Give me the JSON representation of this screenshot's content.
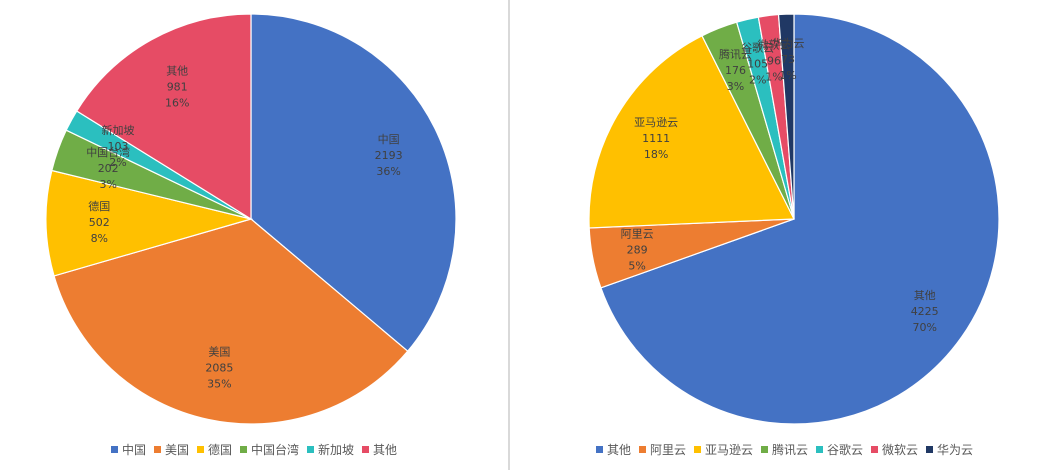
{
  "chart_data": [
    {
      "type": "pie",
      "title": "",
      "legend_position": "bottom",
      "labels": [
        "中国",
        "美国",
        "德国",
        "中国台湾",
        "新加坡",
        "其他"
      ],
      "values": [
        2193,
        2085,
        502,
        202,
        103,
        981
      ],
      "percent_labels": [
        "36%",
        "35%",
        "8%",
        "3%",
        "2%",
        "16%"
      ],
      "colors": [
        "#4472C4",
        "#ED7D31",
        "#FFC000",
        "#70AD47",
        "#2BBFBF",
        "#E64C65"
      ]
    },
    {
      "type": "pie",
      "title": "",
      "legend_position": "bottom",
      "labels": [
        "其他",
        "阿里云",
        "亚马逊云",
        "腾讯云",
        "谷歌云",
        "微软云",
        "华为云"
      ],
      "values": [
        4225,
        289,
        1111,
        176,
        105,
        96,
        73
      ],
      "percent_labels": [
        "70%",
        "5%",
        "18%",
        "3%",
        "2%",
        "1%",
        "1%"
      ],
      "colors": [
        "#4472C4",
        "#ED7D31",
        "#FFC000",
        "#70AD47",
        "#2BBFBF",
        "#E64C65",
        "#203864"
      ]
    }
  ]
}
